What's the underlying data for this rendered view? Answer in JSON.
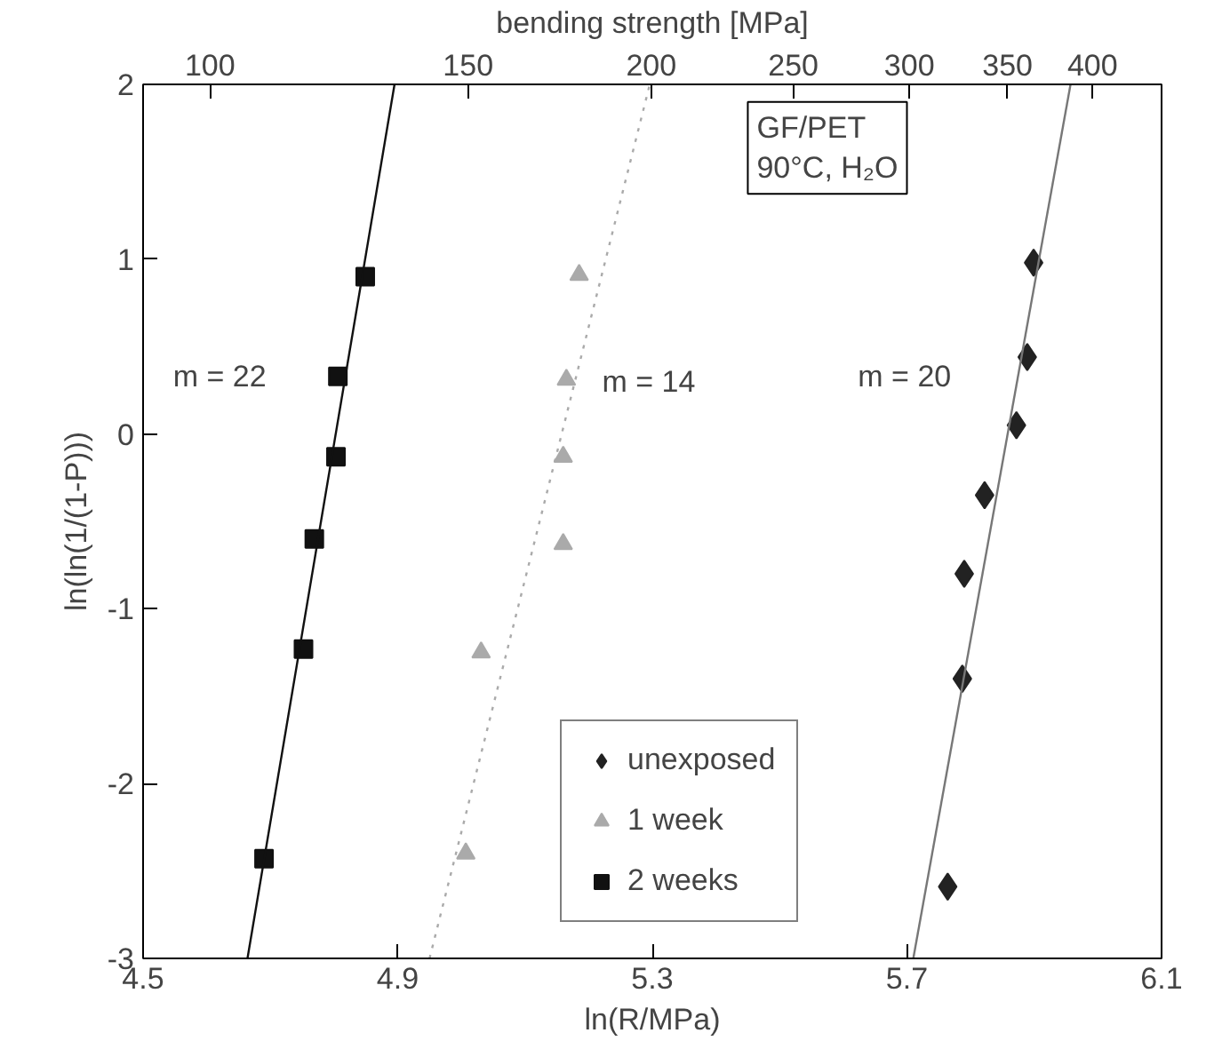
{
  "chart_data": {
    "type": "scatter",
    "xlabel": "ln(R/MPa)",
    "ylabel": "ln(ln(1/(1-P)))",
    "x2label": "bending strength [MPa]",
    "xlim": [
      4.5,
      6.1
    ],
    "xticks": [
      4.5,
      4.9,
      5.3,
      5.7,
      6.1
    ],
    "ylim": [
      -3,
      2
    ],
    "yticks": [
      -3,
      -2,
      -1,
      0,
      1,
      2
    ],
    "x2lim": [
      90.02,
      445.86
    ],
    "x2ticks": [
      100,
      150,
      200,
      250,
      300,
      350,
      400
    ],
    "log": "x2",
    "grid": false,
    "legend": "bottom",
    "series": [
      {
        "name": "unexposed",
        "color": "#222222",
        "marker": "diamond",
        "x": [
          5.899,
          5.889,
          5.872,
          5.822,
          5.79,
          5.787,
          5.764
        ],
        "values": [
          0.98,
          0.44,
          0.05,
          -0.35,
          -0.8,
          -1.4,
          -2.59
        ]
      },
      {
        "name": "1 week",
        "color": "#aaaaaa",
        "marker": "triangle",
        "x": [
          5.185,
          5.165,
          5.16,
          5.16,
          5.031,
          5.007
        ],
        "values": [
          0.91,
          0.31,
          -0.13,
          -0.63,
          -1.25,
          -2.4
        ]
      },
      {
        "name": "2 weeks",
        "color": "#111111",
        "marker": "square",
        "x": [
          4.849,
          4.806,
          4.803,
          4.769,
          4.752,
          4.69
        ],
        "values": [
          0.9,
          0.33,
          -0.13,
          -0.6,
          -1.23,
          -2.43
        ]
      },
      {
        "type": "line",
        "color": "#777777",
        "line_style": "solid",
        "x": [
          5.71,
          5.957
        ],
        "values": [
          -3,
          2
        ]
      },
      {
        "type": "line",
        "color": "#aaaaaa",
        "line_style": "dotted",
        "x": [
          4.95,
          5.296
        ],
        "values": [
          -3,
          2
        ]
      },
      {
        "type": "line",
        "color": "#111111",
        "line_style": "solid",
        "x": [
          4.664,
          4.895
        ],
        "values": [
          -3,
          2
        ]
      }
    ],
    "annotations": [
      "m = 22",
      "m = 14",
      "m = 20",
      "GF/PET\n90°C, H₂O"
    ]
  }
}
